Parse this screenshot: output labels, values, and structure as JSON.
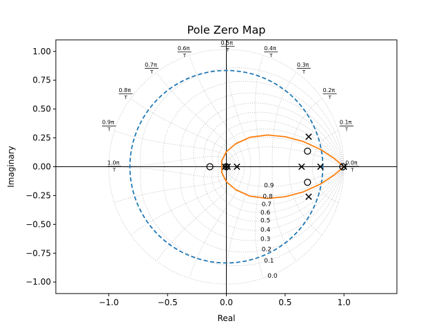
{
  "chart_data": {
    "type": "scatter",
    "title": "Pole Zero Map",
    "xlabel": "Real",
    "ylabel": "Imaginary",
    "xlim": [
      -1.45,
      1.45
    ],
    "ylim": [
      -1.1,
      1.1
    ],
    "xticks": [
      -1.0,
      -0.5,
      0.0,
      0.5,
      1.0
    ],
    "xtick_labels": [
      "−1.0",
      "−0.5",
      "0.0",
      "0.5",
      "1.0"
    ],
    "yticks": [
      1.0,
      0.75,
      0.5,
      0.25,
      0.0,
      -0.25,
      -0.5,
      -0.75,
      -1.0
    ],
    "ytick_labels": [
      "1.00",
      "0.75",
      "0.50",
      "0.25",
      "0.00",
      "−0.25",
      "−0.50",
      "−0.75",
      "−1.00"
    ],
    "grid": "z-plane damping/frequency grid (dotted)",
    "damping_labels": [
      "0.0",
      "0.1",
      "0.2",
      "0.3",
      "0.4",
      "0.5",
      "0.6",
      "0.7",
      "0.8",
      "0.9"
    ],
    "frequency_labels": [
      "0.0π",
      "0.1π",
      "0.2π",
      "0.3π",
      "0.4π",
      "0.5π",
      "0.6π",
      "0.7π",
      "0.8π",
      "0.9π",
      "1.0π"
    ],
    "frequency_denominator": "T",
    "poles": [
      [
        0.7,
        0.26
      ],
      [
        0.7,
        -0.26
      ],
      [
        0.64,
        0.0
      ],
      [
        0.8,
        0.0
      ],
      [
        0.09,
        0.0
      ],
      [
        0.01,
        0.0
      ],
      [
        -0.01,
        0.0
      ],
      [
        1.0,
        0.0
      ]
    ],
    "zeros": [
      [
        -0.14,
        0.0
      ],
      [
        0.69,
        0.135
      ],
      [
        0.69,
        -0.135
      ],
      [
        0.0,
        0.0
      ],
      [
        0.99,
        0.0
      ]
    ],
    "dashed_circle": {
      "center": [
        0,
        0
      ],
      "radius": 0.82,
      "color": "#1f77b4"
    },
    "locus_curve": {
      "color": "#ff7f0e",
      "points": [
        [
          1.0,
          0.0
        ],
        [
          0.92,
          0.07
        ],
        [
          0.8,
          0.15
        ],
        [
          0.65,
          0.22
        ],
        [
          0.5,
          0.26
        ],
        [
          0.35,
          0.275
        ],
        [
          0.2,
          0.255
        ],
        [
          0.08,
          0.2
        ],
        [
          0.0,
          0.13
        ],
        [
          -0.04,
          0.05
        ],
        [
          -0.04,
          -0.05
        ],
        [
          0.0,
          -0.13
        ],
        [
          0.08,
          -0.2
        ],
        [
          0.2,
          -0.255
        ],
        [
          0.35,
          -0.275
        ],
        [
          0.5,
          -0.26
        ],
        [
          0.65,
          -0.22
        ],
        [
          0.8,
          -0.15
        ],
        [
          0.92,
          -0.07
        ],
        [
          1.0,
          0.0
        ]
      ]
    }
  }
}
